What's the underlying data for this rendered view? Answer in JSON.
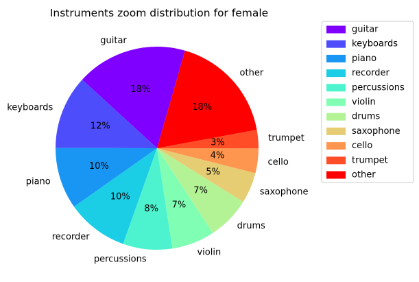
{
  "chart_data": {
    "type": "pie",
    "title": "Instruments zoom distribution for female",
    "slices": [
      {
        "label": "guitar",
        "value": 18,
        "pct_label": "18%",
        "color": "#8000ff"
      },
      {
        "label": "keyboards",
        "value": 12,
        "pct_label": "12%",
        "color": "#4d4dfc"
      },
      {
        "label": "piano",
        "value": 10,
        "pct_label": "10%",
        "color": "#1996f3"
      },
      {
        "label": "recorder",
        "value": 10,
        "pct_label": "10%",
        "color": "#1ccde6"
      },
      {
        "label": "percussions",
        "value": 8,
        "pct_label": "8%",
        "color": "#4df3ce"
      },
      {
        "label": "violin",
        "value": 7,
        "pct_label": "7%",
        "color": "#80ffb4"
      },
      {
        "label": "drums",
        "value": 7,
        "pct_label": "7%",
        "color": "#b3f396"
      },
      {
        "label": "saxophone",
        "value": 5,
        "pct_label": "5%",
        "color": "#e6cd73"
      },
      {
        "label": "cello",
        "value": 4,
        "pct_label": "4%",
        "color": "#ff964f"
      },
      {
        "label": "trumpet",
        "value": 3,
        "pct_label": "3%",
        "color": "#ff4d27"
      },
      {
        "label": "other",
        "value": 18,
        "pct_label": "18%",
        "color": "#ff0000"
      }
    ],
    "legend_placement": "upper-right-outside",
    "start_angle_deg": 74,
    "direction": "counterclockwise"
  }
}
